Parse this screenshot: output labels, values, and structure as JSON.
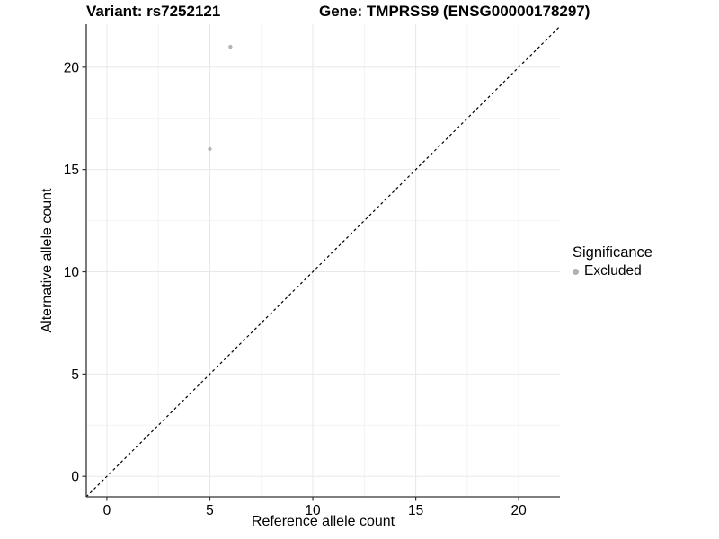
{
  "titles": {
    "variant": "Variant: rs7252121",
    "gene": "Gene: TMPRSS9 (ENSG00000178297)"
  },
  "chart_data": {
    "type": "scatter",
    "xlabel": "Reference allele count",
    "ylabel": "Alternative allele count",
    "xlim": [
      -1,
      22
    ],
    "ylim": [
      -1,
      22.1
    ],
    "xticks": [
      0,
      5,
      10,
      15,
      20
    ],
    "yticks": [
      0,
      5,
      10,
      15,
      20
    ],
    "minor_xticks": [
      2.5,
      7.5,
      12.5,
      17.5
    ],
    "minor_yticks": [
      2.5,
      7.5,
      12.5,
      17.5
    ],
    "grid": "on",
    "series": [
      {
        "name": "Excluded",
        "points": [
          {
            "x": 6,
            "y": 21
          },
          {
            "x": 5,
            "y": 16
          }
        ]
      }
    ],
    "reference_line": {
      "type": "identity-y-equals-x",
      "style": "dashed",
      "color": "#000000"
    }
  },
  "legend": {
    "title": "Significance",
    "position": "right",
    "items": [
      {
        "label": "Excluded",
        "color": "#b0b0b0"
      }
    ]
  },
  "colors": {
    "background": "#ffffff",
    "point": "#b5b5b5",
    "axis_line": "#333333",
    "tick": "#333333",
    "grid_major": "#e8e8e8",
    "grid_minor": "#f2f2f2",
    "text": "#000000"
  }
}
